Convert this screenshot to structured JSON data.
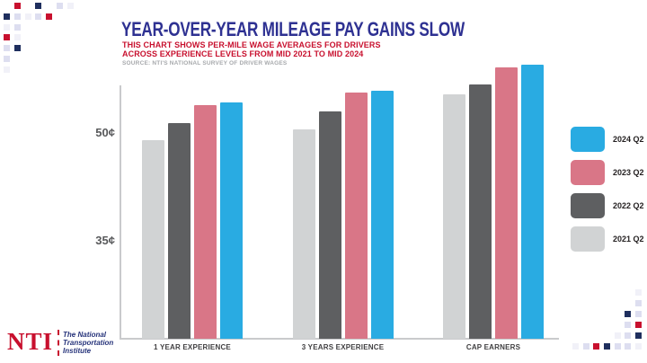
{
  "title": "YEAR-OVER-YEAR MILEAGE PAY GAINS SLOW",
  "subtitle_line1": "THIS CHART SHOWS PER-MILE WAGE AVERAGES FOR DRIVERS",
  "subtitle_line2": "ACROSS EXPERIENCE LEVELS FROM MID 2021 TO MID 2024",
  "source": "SOURCE: NTI'S NATIONAL SURVEY OF DRIVER WAGES",
  "logo": {
    "abbr": "NTI",
    "name_lines": [
      "The National",
      "Transportation",
      "Institute"
    ]
  },
  "colors": {
    "title_navy": "#2E3192",
    "accent_red": "#C8102E",
    "source_gray": "#A7A9AC",
    "axis_gray": "#C9CACC",
    "bar_2021": "#D1D3D4",
    "bar_2022": "#5E5F61",
    "bar_2023": "#D97687",
    "bar_2024": "#29ABE2",
    "dot_navy": "#1F2F5E",
    "dot_lavender": "#DDDEF0",
    "dot_faint": "#F1F1F8"
  },
  "chart_data": {
    "type": "bar",
    "title": "YEAR-OVER-YEAR MILEAGE PAY GAINS SLOW",
    "subtitle": "THIS CHART SHOWS PER-MILE WAGE AVERAGES FOR DRIVERS ACROSS EXPERIENCE LEVELS FROM MID 2021 TO MID 2024",
    "source": "SOURCE: NTI'S NATIONAL SURVEY OF DRIVER WAGES",
    "unit": "cents per mile",
    "categories": [
      "1 YEAR EXPERIENCE",
      "3 YEARS EXPERIENCE",
      "CAP EARNERS"
    ],
    "series": [
      {
        "name": "2021 Q2",
        "color": "#D1D3D4",
        "values": [
          49.0,
          50.5,
          55.4
        ]
      },
      {
        "name": "2022 Q2",
        "color": "#5E5F61",
        "values": [
          51.4,
          53.0,
          56.8
        ]
      },
      {
        "name": "2023 Q2",
        "color": "#D97687",
        "values": [
          53.9,
          55.6,
          59.1
        ]
      },
      {
        "name": "2024 Q2",
        "color": "#29ABE2",
        "values": [
          54.3,
          55.9,
          59.5
        ]
      }
    ],
    "y_ticks": [
      {
        "label": "50¢",
        "value": 50
      },
      {
        "label": "35¢",
        "value": 35
      }
    ],
    "y_axis_truncated": true,
    "ylim_shown": [
      21.4,
      60
    ],
    "grid": false,
    "legend_position": "right",
    "legend_order_top_to_bottom": [
      "2024 Q2",
      "2023 Q2",
      "2022 Q2",
      "2021 Q2"
    ]
  },
  "decor": {
    "top_left_dots": [
      {
        "c": 1,
        "r": 0,
        "k": "red"
      },
      {
        "c": 3,
        "r": 0,
        "k": "navy"
      },
      {
        "c": 5,
        "r": 0,
        "k": "lav"
      },
      {
        "c": 6,
        "r": 0,
        "k": "faint"
      },
      {
        "c": 0,
        "r": 1,
        "k": "navy"
      },
      {
        "c": 1,
        "r": 1,
        "k": "lav"
      },
      {
        "c": 2,
        "r": 1,
        "k": "faint"
      },
      {
        "c": 3,
        "r": 1,
        "k": "lav"
      },
      {
        "c": 4,
        "r": 1,
        "k": "red"
      },
      {
        "c": 0,
        "r": 2,
        "k": "faint"
      },
      {
        "c": 1,
        "r": 2,
        "k": "lav"
      },
      {
        "c": 0,
        "r": 3,
        "k": "red"
      },
      {
        "c": 1,
        "r": 3,
        "k": "faint"
      },
      {
        "c": 0,
        "r": 4,
        "k": "lav"
      },
      {
        "c": 1,
        "r": 4,
        "k": "navy"
      },
      {
        "c": 0,
        "r": 5,
        "k": "lav"
      },
      {
        "c": 0,
        "r": 6,
        "k": "faint"
      }
    ],
    "bottom_right_dots": [
      {
        "c": 0,
        "r": 0,
        "k": "faint"
      },
      {
        "c": 0,
        "r": 1,
        "k": "lav"
      },
      {
        "c": 1,
        "r": 2,
        "k": "navy"
      },
      {
        "c": 0,
        "r": 2,
        "k": "lav"
      },
      {
        "c": 1,
        "r": 3,
        "k": "lav"
      },
      {
        "c": 0,
        "r": 3,
        "k": "red"
      },
      {
        "c": 2,
        "r": 4,
        "k": "faint"
      },
      {
        "c": 1,
        "r": 4,
        "k": "lav"
      },
      {
        "c": 0,
        "r": 4,
        "k": "navy"
      },
      {
        "c": 6,
        "r": 5,
        "k": "faint"
      },
      {
        "c": 5,
        "r": 5,
        "k": "lav"
      },
      {
        "c": 4,
        "r": 5,
        "k": "red"
      },
      {
        "c": 3,
        "r": 5,
        "k": "navy"
      },
      {
        "c": 2,
        "r": 5,
        "k": "lav"
      },
      {
        "c": 1,
        "r": 5,
        "k": "lav"
      },
      {
        "c": 0,
        "r": 5,
        "k": "faint"
      }
    ]
  }
}
